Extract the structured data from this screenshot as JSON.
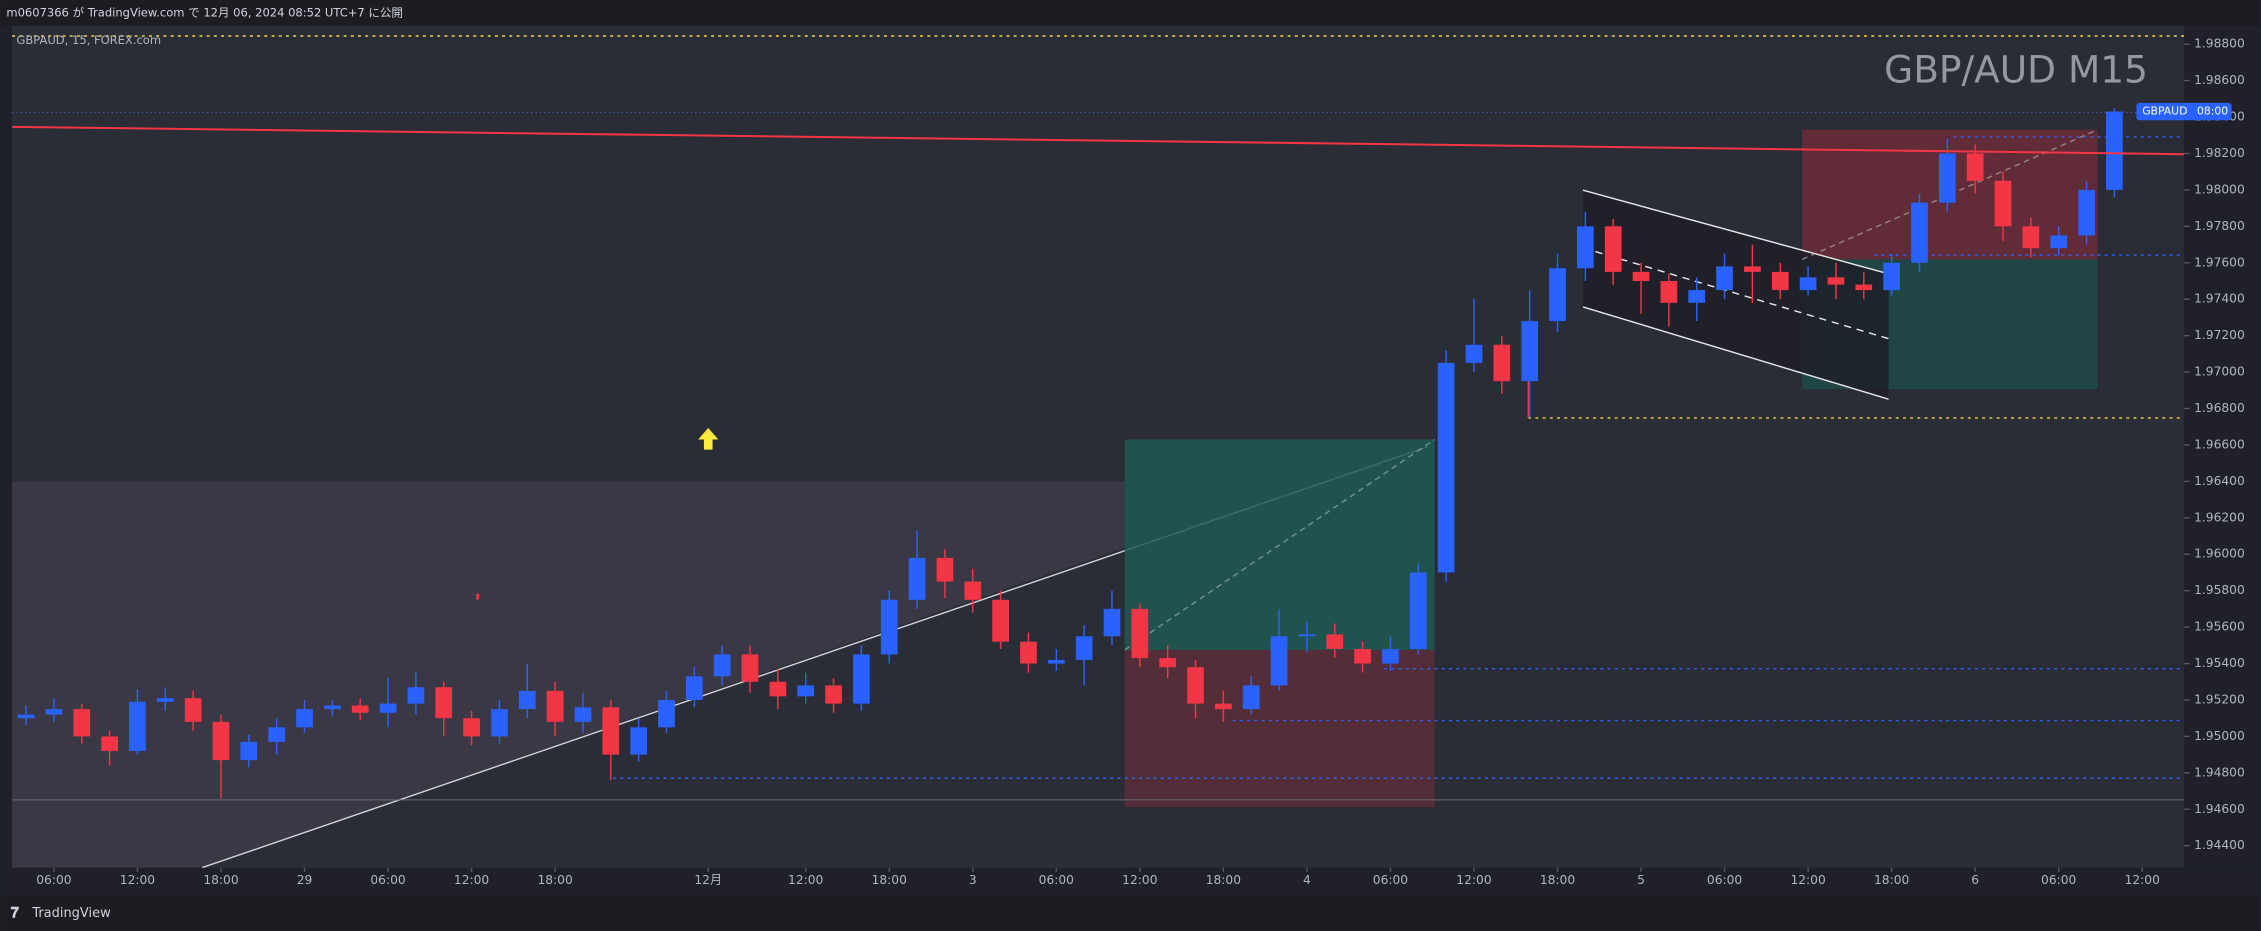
{
  "header": {
    "publisher": "m0607366 が TradingView.com で 12月 06, 2024 08:52 UTC+7 に公開",
    "symbol_info": "GBPAUD, 15, FOREX.com",
    "watermark": "GBP/AUD M15",
    "price_tag": {
      "symbol": "GBPAUD",
      "time": "08:00"
    }
  },
  "footer": {
    "brand": "TradingView"
  },
  "chart_data": {
    "type": "candlestick",
    "up_color": "#2962ff",
    "down_color": "#f23645",
    "xlim": [
      3,
      159
    ],
    "ylim": [
      1.9428,
      1.989
    ],
    "xticks": [
      {
        "value": 6,
        "label": "06:00"
      },
      {
        "value": 12,
        "label": "12:00"
      },
      {
        "value": 18,
        "label": "18:00"
      },
      {
        "value": 24,
        "label": "29"
      },
      {
        "value": 30,
        "label": "06:00"
      },
      {
        "value": 36,
        "label": "12:00"
      },
      {
        "value": 42,
        "label": "18:00"
      },
      {
        "value": 53,
        "label": "12月"
      },
      {
        "value": 60,
        "label": "12:00"
      },
      {
        "value": 66,
        "label": "18:00"
      },
      {
        "value": 72,
        "label": "3"
      },
      {
        "value": 78,
        "label": "06:00"
      },
      {
        "value": 84,
        "label": "12:00"
      },
      {
        "value": 90,
        "label": "18:00"
      },
      {
        "value": 96,
        "label": "4"
      },
      {
        "value": 102,
        "label": "06:00"
      },
      {
        "value": 108,
        "label": "12:00"
      },
      {
        "value": 114,
        "label": "18:00"
      },
      {
        "value": 120,
        "label": "5"
      },
      {
        "value": 126,
        "label": "06:00"
      },
      {
        "value": 132,
        "label": "12:00"
      },
      {
        "value": 138,
        "label": "18:00"
      },
      {
        "value": 144,
        "label": "6"
      },
      {
        "value": 150,
        "label": "06:00"
      },
      {
        "value": 156,
        "label": "12:00"
      }
    ],
    "yticks": [
      {
        "value": 1.988,
        "label": "1.98800"
      },
      {
        "value": 1.986,
        "label": "1.98600"
      },
      {
        "value": 1.984,
        "label": "1.98400"
      },
      {
        "value": 1.982,
        "label": "1.98200"
      },
      {
        "value": 1.98,
        "label": "1.98000"
      },
      {
        "value": 1.978,
        "label": "1.97800"
      },
      {
        "value": 1.976,
        "label": "1.97600"
      },
      {
        "value": 1.974,
        "label": "1.97400"
      },
      {
        "value": 1.972,
        "label": "1.97200"
      },
      {
        "value": 1.97,
        "label": "1.97000"
      },
      {
        "value": 1.968,
        "label": "1.96800"
      },
      {
        "value": 1.966,
        "label": "1.96600"
      },
      {
        "value": 1.964,
        "label": "1.96400"
      },
      {
        "value": 1.962,
        "label": "1.96200"
      },
      {
        "value": 1.96,
        "label": "1.96000"
      },
      {
        "value": 1.958,
        "label": "1.95800"
      },
      {
        "value": 1.956,
        "label": "1.95600"
      },
      {
        "value": 1.954,
        "label": "1.95400"
      },
      {
        "value": 1.952,
        "label": "1.95200"
      },
      {
        "value": 1.95,
        "label": "1.95000"
      },
      {
        "value": 1.948,
        "label": "1.94800"
      },
      {
        "value": 1.946,
        "label": "1.94600"
      },
      {
        "value": 1.944,
        "label": "1.94400"
      }
    ],
    "x": [
      4,
      6,
      8,
      10,
      12,
      14,
      16,
      18,
      20,
      22,
      24,
      26,
      28,
      30,
      32,
      34,
      36,
      38,
      40,
      42,
      44,
      46,
      48,
      50,
      52,
      54,
      56,
      58,
      60,
      62,
      64,
      66,
      68,
      70,
      72,
      74,
      76,
      78,
      80,
      82,
      84,
      86,
      88,
      90,
      92,
      94,
      96,
      98,
      100,
      102,
      104,
      106,
      108,
      110,
      112,
      114,
      116,
      118,
      120,
      122,
      124,
      126,
      128,
      130,
      132,
      134,
      136,
      138,
      140,
      142,
      144,
      146,
      148,
      150,
      152,
      154
    ],
    "ohlc": [
      [
        1.951,
        1.9517,
        1.9506,
        1.9512
      ],
      [
        1.9512,
        1.9521,
        1.9508,
        1.9515
      ],
      [
        1.9515,
        1.9518,
        1.9496,
        1.95
      ],
      [
        1.95,
        1.9503,
        1.9484,
        1.9492
      ],
      [
        1.9492,
        1.9526,
        1.949,
        1.9519
      ],
      [
        1.9519,
        1.9527,
        1.9514,
        1.9521
      ],
      [
        1.9521,
        1.9525,
        1.9503,
        1.9508
      ],
      [
        1.9508,
        1.9512,
        1.9466,
        1.9487
      ],
      [
        1.9487,
        1.9501,
        1.9483,
        1.9497
      ],
      [
        1.9497,
        1.951,
        1.949,
        1.9505
      ],
      [
        1.9505,
        1.952,
        1.9502,
        1.9515
      ],
      [
        1.9515,
        1.952,
        1.9511,
        1.9517
      ],
      [
        1.9517,
        1.9521,
        1.9509,
        1.9513
      ],
      [
        1.9513,
        1.9532,
        1.9505,
        1.9518
      ],
      [
        1.9518,
        1.9535,
        1.9512,
        1.9527
      ],
      [
        1.9527,
        1.953,
        1.95,
        1.951
      ],
      [
        1.951,
        1.9514,
        1.9495,
        1.95
      ],
      [
        1.95,
        1.952,
        1.9496,
        1.9515
      ],
      [
        1.9515,
        1.954,
        1.951,
        1.9525
      ],
      [
        1.9525,
        1.953,
        1.95,
        1.9508
      ],
      [
        1.9508,
        1.9524,
        1.9502,
        1.9516
      ],
      [
        1.9516,
        1.952,
        1.9476,
        1.949
      ],
      [
        1.949,
        1.951,
        1.9486,
        1.9505
      ],
      [
        1.9505,
        1.9525,
        1.9502,
        1.952
      ],
      [
        1.952,
        1.9538,
        1.9516,
        1.9533
      ],
      [
        1.9533,
        1.955,
        1.9528,
        1.9545
      ],
      [
        1.9545,
        1.955,
        1.9524,
        1.953
      ],
      [
        1.953,
        1.9537,
        1.9515,
        1.9522
      ],
      [
        1.9522,
        1.9535,
        1.9518,
        1.9528
      ],
      [
        1.9528,
        1.9532,
        1.9513,
        1.9518
      ],
      [
        1.9518,
        1.955,
        1.9514,
        1.9545
      ],
      [
        1.9545,
        1.958,
        1.954,
        1.9575
      ],
      [
        1.9575,
        1.9613,
        1.957,
        1.9598
      ],
      [
        1.9598,
        1.9603,
        1.9576,
        1.9585
      ],
      [
        1.9585,
        1.9592,
        1.9568,
        1.9575
      ],
      [
        1.9575,
        1.958,
        1.9548,
        1.9552
      ],
      [
        1.9552,
        1.9557,
        1.9535,
        1.954
      ],
      [
        1.954,
        1.9548,
        1.9536,
        1.9542
      ],
      [
        1.9542,
        1.9561,
        1.9528,
        1.9555
      ],
      [
        1.9555,
        1.958,
        1.955,
        1.957
      ],
      [
        1.957,
        1.9573,
        1.9538,
        1.9543
      ],
      [
        1.9543,
        1.955,
        1.9532,
        1.9538
      ],
      [
        1.9538,
        1.9542,
        1.951,
        1.9518
      ],
      [
        1.9518,
        1.9525,
        1.9508,
        1.9515
      ],
      [
        1.9515,
        1.9533,
        1.9512,
        1.9528
      ],
      [
        1.9528,
        1.957,
        1.9525,
        1.9555
      ],
      [
        1.9555,
        1.9563,
        1.9546,
        1.9556
      ],
      [
        1.9556,
        1.9562,
        1.9543,
        1.9548
      ],
      [
        1.9548,
        1.9552,
        1.9535,
        1.954
      ],
      [
        1.954,
        1.9555,
        1.9536,
        1.9548
      ],
      [
        1.9548,
        1.9595,
        1.9545,
        1.959
      ],
      [
        1.959,
        1.9712,
        1.9585,
        1.9705
      ],
      [
        1.9705,
        1.974,
        1.97,
        1.9715
      ],
      [
        1.9715,
        1.972,
        1.9688,
        1.9695
      ],
      [
        1.9695,
        1.9745,
        1.9675,
        1.9728
      ],
      [
        1.9728,
        1.9765,
        1.9722,
        1.9757
      ],
      [
        1.9757,
        1.9788,
        1.975,
        1.978
      ],
      [
        1.978,
        1.9784,
        1.9748,
        1.9755
      ],
      [
        1.9755,
        1.976,
        1.9732,
        1.975
      ],
      [
        1.975,
        1.9754,
        1.9725,
        1.9738
      ],
      [
        1.9738,
        1.9752,
        1.9728,
        1.9745
      ],
      [
        1.9745,
        1.9765,
        1.974,
        1.9758
      ],
      [
        1.9758,
        1.977,
        1.9738,
        1.9755
      ],
      [
        1.9755,
        1.976,
        1.974,
        1.9745
      ],
      [
        1.9745,
        1.9758,
        1.9742,
        1.9752
      ],
      [
        1.9752,
        1.976,
        1.974,
        1.9748
      ],
      [
        1.9748,
        1.9755,
        1.974,
        1.9745
      ],
      [
        1.9745,
        1.9765,
        1.9742,
        1.976
      ],
      [
        1.976,
        1.9798,
        1.9755,
        1.9793
      ],
      [
        1.9793,
        1.9828,
        1.9788,
        1.982
      ],
      [
        1.982,
        1.9825,
        1.9798,
        1.9805
      ],
      [
        1.9805,
        1.981,
        1.9772,
        1.978
      ],
      [
        1.978,
        1.9785,
        1.9763,
        1.9768
      ],
      [
        1.9768,
        1.978,
        1.9764,
        1.9775
      ],
      [
        1.9775,
        1.9805,
        1.977,
        1.98
      ],
      [
        1.98,
        1.9845,
        1.9796,
        1.9843
      ]
    ]
  }
}
